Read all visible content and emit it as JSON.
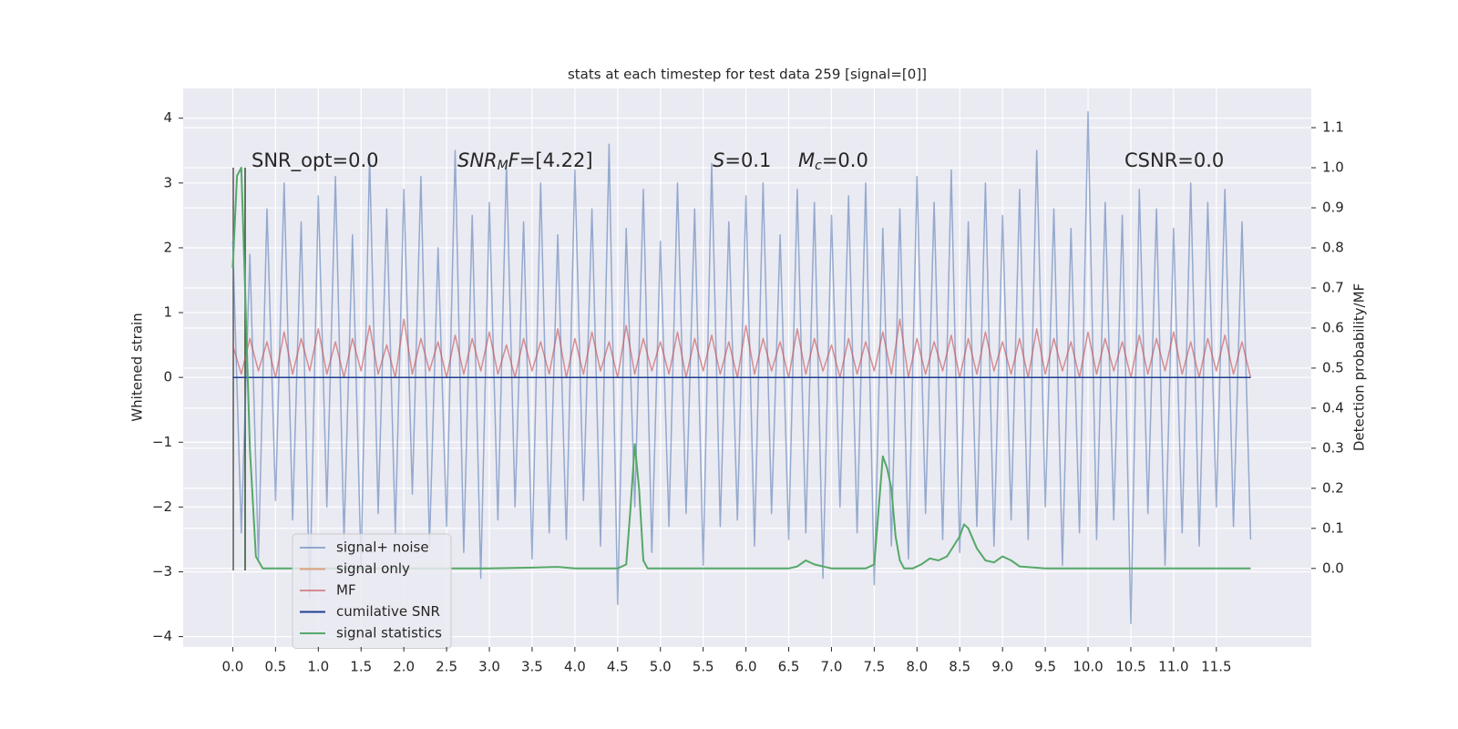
{
  "chart_data": {
    "type": "line",
    "title": "stats at each timestep for test data 259 [signal=[0]]",
    "ylabel": "Whitened strain",
    "y2label": "Detection probability/MF",
    "annotations": [
      [
        {
          "text": "SNR_opt=0.0",
          "style": "normal"
        }
      ],
      [
        {
          "text": "SNR",
          "style": "italic"
        },
        {
          "text": "M",
          "style": "sub"
        },
        {
          "text": "F",
          "style": "italic"
        },
        {
          "text": "=[4.22]",
          "style": "normal"
        }
      ],
      [
        {
          "text": "S",
          "style": "italic"
        },
        {
          "text": "=0.1",
          "style": "normal"
        }
      ],
      [
        {
          "text": "M",
          "style": "italic"
        },
        {
          "text": "c",
          "style": "sub"
        },
        {
          "text": "=0.0",
          "style": "normal"
        }
      ],
      [
        {
          "text": "CSNR=0.0",
          "style": "normal"
        }
      ]
    ],
    "x": [
      0.0,
      0.1,
      0.2,
      0.3,
      0.4,
      0.5,
      0.6,
      0.7,
      0.8,
      0.9,
      1.0,
      1.1,
      1.2,
      1.3,
      1.4,
      1.5,
      1.6,
      1.7,
      1.8,
      1.9,
      2.0,
      2.1,
      2.2,
      2.3,
      2.4,
      2.5,
      2.6,
      2.7,
      2.8,
      2.9,
      3.0,
      3.1,
      3.2,
      3.3,
      3.4,
      3.5,
      3.6,
      3.7,
      3.8,
      3.9,
      4.0,
      4.1,
      4.2,
      4.3,
      4.4,
      4.5,
      4.6,
      4.7,
      4.8,
      4.9,
      5.0,
      5.1,
      5.2,
      5.3,
      5.4,
      5.5,
      5.6,
      5.7,
      5.8,
      5.9,
      6.0,
      6.1,
      6.2,
      6.3,
      6.4,
      6.5,
      6.6,
      6.7,
      6.8,
      6.9,
      7.0,
      7.1,
      7.2,
      7.3,
      7.4,
      7.5,
      7.6,
      7.7,
      7.8,
      7.9,
      8.0,
      8.1,
      8.2,
      8.3,
      8.4,
      8.5,
      8.6,
      8.7,
      8.8,
      8.9,
      9.0,
      9.1,
      9.2,
      9.3,
      9.4,
      9.5,
      9.6,
      9.7,
      9.8,
      9.9,
      10.0,
      10.1,
      10.2,
      10.3,
      10.4,
      10.5,
      10.6,
      10.7,
      10.8,
      10.9,
      11.0,
      11.1,
      11.2,
      11.3,
      11.4,
      11.5,
      11.6,
      11.7,
      11.8,
      11.9
    ],
    "series": [
      {
        "name": "signal+ noise",
        "color": "#4c72b0",
        "values": [
          2.1,
          -2.4,
          1.9,
          -2.8,
          2.6,
          -1.9,
          3.0,
          -2.2,
          2.4,
          -3.4,
          2.8,
          -2.0,
          3.1,
          -2.5,
          2.2,
          -2.9,
          3.4,
          -2.1,
          2.6,
          -2.4,
          2.9,
          -1.8,
          3.1,
          -2.6,
          2.0,
          -2.3,
          3.5,
          -2.7,
          2.5,
          -3.1,
          2.7,
          -2.2,
          3.3,
          -2.0,
          2.4,
          -2.8,
          3.0,
          -2.4,
          2.2,
          -2.5,
          3.2,
          -1.9,
          2.6,
          -2.6,
          3.6,
          -3.5,
          2.3,
          -2.0,
          2.9,
          -2.7,
          2.1,
          -2.3,
          3.0,
          -2.1,
          2.6,
          -2.9,
          3.3,
          -2.3,
          2.4,
          -2.2,
          2.8,
          -2.6,
          3.0,
          -2.1,
          2.2,
          -2.5,
          2.9,
          -2.4,
          2.7,
          -3.1,
          2.5,
          -2.0,
          2.8,
          -2.4,
          3.0,
          -3.2,
          2.3,
          -2.6,
          2.6,
          -2.8,
          3.1,
          -2.1,
          2.7,
          -2.5,
          3.2,
          -2.7,
          2.4,
          -2.3,
          3.0,
          -2.6,
          2.5,
          -2.2,
          2.9,
          -2.5,
          3.5,
          -2.0,
          2.6,
          -2.9,
          2.3,
          -2.4,
          4.1,
          -2.5,
          2.7,
          -2.2,
          2.5,
          -3.8,
          2.9,
          -2.1,
          2.6,
          -2.9,
          2.3,
          -2.4,
          3.0,
          -2.6,
          2.7,
          -2.0,
          2.9,
          -2.3,
          2.4,
          -2.5
        ]
      },
      {
        "name": "signal only",
        "color": "#dd8452",
        "x": [
          0.0,
          11.9
        ],
        "values": [
          0,
          0
        ]
      },
      {
        "name": "MF",
        "color": "#c44e52",
        "values": [
          0.5,
          0.05,
          0.6,
          0.1,
          0.55,
          0.0,
          0.7,
          0.05,
          0.6,
          0.1,
          0.75,
          0.05,
          0.55,
          0.0,
          0.6,
          0.1,
          0.8,
          0.05,
          0.5,
          0.0,
          0.9,
          0.05,
          0.6,
          0.1,
          0.55,
          0.0,
          0.65,
          0.05,
          0.6,
          0.1,
          0.7,
          0.05,
          0.5,
          0.0,
          0.6,
          0.1,
          0.55,
          0.05,
          0.75,
          0.0,
          0.6,
          0.05,
          0.7,
          0.1,
          0.55,
          0.0,
          0.8,
          0.05,
          0.6,
          0.1,
          0.55,
          0.05,
          0.7,
          0.0,
          0.6,
          0.1,
          0.65,
          0.05,
          0.55,
          0.0,
          0.8,
          0.05,
          0.6,
          0.1,
          0.55,
          0.0,
          0.75,
          0.05,
          0.6,
          0.1,
          0.5,
          0.0,
          0.6,
          0.05,
          0.55,
          0.1,
          0.7,
          0.05,
          0.9,
          0.0,
          0.6,
          0.05,
          0.55,
          0.1,
          0.65,
          0.0,
          0.6,
          0.05,
          0.7,
          0.1,
          0.55,
          0.05,
          0.6,
          0.0,
          0.75,
          0.05,
          0.6,
          0.1,
          0.55,
          0.0,
          0.7,
          0.05,
          0.6,
          0.1,
          0.55,
          0.0,
          0.65,
          0.05,
          0.6,
          0.1,
          0.7,
          0.05,
          0.55,
          0.0,
          0.6,
          0.1,
          0.65,
          0.05,
          0.55,
          0.0
        ]
      },
      {
        "name": "cumilative SNR",
        "color": "#1f3f8f",
        "x": [
          0.0,
          11.9
        ],
        "values": [
          0,
          0
        ]
      },
      {
        "name": "signal statistics",
        "color": "#55a868",
        "axis": "y2",
        "x": [
          0.0,
          0.05,
          0.1,
          0.13,
          0.2,
          0.27,
          0.35,
          0.5,
          1.0,
          2.0,
          3.0,
          3.5,
          3.8,
          4.0,
          4.5,
          4.6,
          4.65,
          4.7,
          4.75,
          4.8,
          4.85,
          5.0,
          6.0,
          6.5,
          6.6,
          6.7,
          6.8,
          7.0,
          7.4,
          7.5,
          7.6,
          7.65,
          7.7,
          7.75,
          7.8,
          7.85,
          7.95,
          8.05,
          8.15,
          8.25,
          8.35,
          8.5,
          8.55,
          8.6,
          8.7,
          8.8,
          8.9,
          9.0,
          9.1,
          9.2,
          9.5,
          10.0,
          11.0,
          11.9
        ],
        "values": [
          0.75,
          0.98,
          1.0,
          0.8,
          0.3,
          0.03,
          0.0,
          0.0,
          0.0,
          0.0,
          0.0,
          0.002,
          0.004,
          0.0,
          0.0,
          0.01,
          0.15,
          0.31,
          0.2,
          0.02,
          0.0,
          0.0,
          0.0,
          0.0,
          0.005,
          0.02,
          0.01,
          0.0,
          0.0,
          0.01,
          0.28,
          0.25,
          0.2,
          0.08,
          0.02,
          0.0,
          0.0,
          0.01,
          0.025,
          0.02,
          0.03,
          0.08,
          0.11,
          0.1,
          0.05,
          0.02,
          0.015,
          0.03,
          0.02,
          0.005,
          0.0,
          0.0,
          0.0,
          0.0
        ]
      }
    ],
    "xlim": [
      -0.58,
      12.61
    ],
    "xticks": [
      {
        "value": 0,
        "label": "0.0"
      },
      0.5,
      {
        "value": 1,
        "label": "1.0"
      },
      1.5,
      {
        "value": 2,
        "label": "2.0"
      },
      2.5,
      {
        "value": 3,
        "label": "3.0"
      },
      3.5,
      {
        "value": 4,
        "label": "4.0"
      },
      4.5,
      {
        "value": 5,
        "label": "5.0"
      },
      5.5,
      {
        "value": 6,
        "label": "6.0"
      },
      6.5,
      {
        "value": 7,
        "label": "7.0"
      },
      7.5,
      {
        "value": 8,
        "label": "8.0"
      },
      8.5,
      {
        "value": 9,
        "label": "9.0"
      },
      9.5,
      {
        "value": 10,
        "label": "10.0"
      },
      10.5,
      {
        "value": 11,
        "label": "11.0"
      },
      11.5
    ],
    "ylim": [
      -4.16,
      4.46
    ],
    "yticks": [
      {
        "value": -4,
        "label": "−4"
      },
      {
        "value": -3,
        "label": "−3"
      },
      {
        "value": -2,
        "label": "−2"
      },
      {
        "value": -1,
        "label": "−1"
      },
      0,
      1,
      2,
      3,
      4
    ],
    "y2lim": [
      -0.196,
      1.198
    ],
    "y2ticks": [
      {
        "value": 0,
        "label": "0.0"
      },
      0.1,
      0.2,
      0.3,
      0.4,
      0.5,
      0.6,
      0.7,
      0.8,
      0.9,
      {
        "value": 1,
        "label": "1.0"
      },
      1.1
    ],
    "grid": true,
    "legend": "lower left"
  }
}
